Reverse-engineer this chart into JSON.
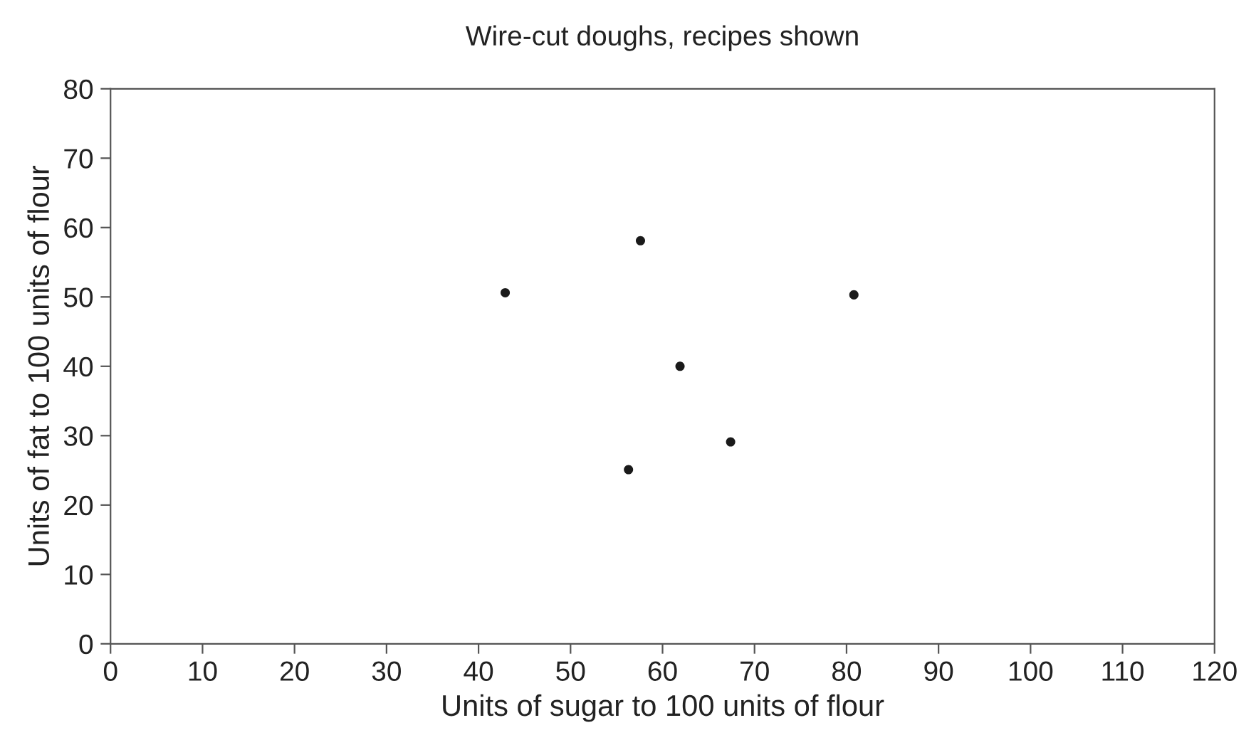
{
  "chart_data": {
    "type": "scatter",
    "title": "Wire-cut doughs, recipes shown",
    "xlabel": "Units of sugar to 100 units of flour",
    "ylabel": "Units of fat to 100 units of flour",
    "x": [
      42.9,
      57.6,
      80.8,
      61.9,
      67.4,
      56.3
    ],
    "series": [
      {
        "color": "#1a1a1a",
        "values": [
          50.6,
          58.1,
          50.3,
          40.0,
          29.1,
          25.1
        ]
      }
    ],
    "xlim": [
      0,
      120
    ],
    "xticks": [
      0,
      10,
      20,
      30,
      40,
      50,
      60,
      70,
      80,
      90,
      100,
      110,
      120
    ],
    "ylim": [
      0,
      80
    ],
    "yticks": [
      0,
      10,
      20,
      30,
      40,
      50,
      60,
      70,
      80
    ],
    "marker": "circle",
    "grid": false,
    "legend": false
  }
}
